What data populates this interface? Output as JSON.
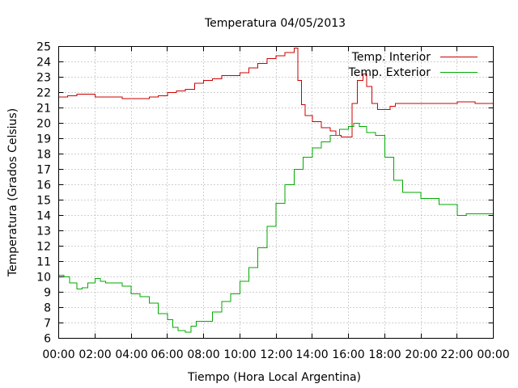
{
  "chart_data": {
    "type": "line",
    "title": "Temperatura 04/05/2013",
    "xlabel": "Tiempo (Hora Local Argentina)",
    "ylabel": "Temperatura (Grados Celsius)",
    "x_unit": "hours",
    "xlim": [
      0,
      24
    ],
    "ylim": [
      6,
      25
    ],
    "x_ticks": [
      0,
      2,
      4,
      6,
      8,
      10,
      12,
      14,
      16,
      18,
      20,
      22,
      24
    ],
    "x_tick_labels": [
      "00:00",
      "02:00",
      "04:00",
      "06:00",
      "08:00",
      "10:00",
      "12:00",
      "14:00",
      "16:00",
      "18:00",
      "20:00",
      "22:00",
      "00:00"
    ],
    "y_ticks": [
      6,
      7,
      8,
      9,
      10,
      11,
      12,
      13,
      14,
      15,
      16,
      17,
      18,
      19,
      20,
      21,
      22,
      23,
      24,
      25
    ],
    "y_tick_labels": [
      "6",
      "7",
      "8",
      "9",
      "10",
      "11",
      "12",
      "13",
      "14",
      "15",
      "16",
      "17",
      "18",
      "19",
      "20",
      "21",
      "22",
      "23",
      "24",
      "25"
    ],
    "grid": true,
    "legend_position": "top-right",
    "series": [
      {
        "name": "Temp. Interior",
        "color": "#cc0000",
        "x": [
          0,
          0.5,
          1,
          1.5,
          2,
          3,
          3.5,
          4,
          4.5,
          5,
          5.5,
          6,
          6.5,
          7,
          7.5,
          8,
          8.5,
          9,
          9.5,
          10,
          10.5,
          11,
          11.5,
          12,
          12.5,
          13,
          13.2,
          13.4,
          13.6,
          14,
          14.5,
          15,
          15.3,
          15.6,
          15.9,
          16.2,
          16.5,
          16.8,
          17,
          17.3,
          17.6,
          18,
          18.3,
          18.6,
          19,
          20,
          21,
          22,
          22.5,
          23,
          24
        ],
        "y": [
          21.7,
          21.8,
          21.9,
          21.9,
          21.7,
          21.7,
          21.6,
          21.6,
          21.6,
          21.7,
          21.8,
          22,
          22.1,
          22.2,
          22.6,
          22.8,
          22.9,
          23.1,
          23.1,
          23.3,
          23.6,
          23.9,
          24.2,
          24.4,
          24.6,
          24.9,
          22.8,
          21.2,
          20.5,
          20.1,
          19.7,
          19.5,
          19.2,
          19.1,
          19.1,
          21.3,
          22.8,
          23.2,
          22.4,
          21.3,
          20.9,
          20.9,
          21.1,
          21.3,
          21.3,
          21.3,
          21.3,
          21.4,
          21.4,
          21.3,
          21.3
        ]
      },
      {
        "name": "Temp. Exterior",
        "color": "#00aa00",
        "x": [
          0,
          0.3,
          0.6,
          1,
          1.3,
          1.6,
          2,
          2.3,
          2.6,
          3,
          3.5,
          4,
          4.5,
          5,
          5.5,
          6,
          6.3,
          6.6,
          7,
          7.3,
          7.6,
          8,
          8.5,
          9,
          9.5,
          10,
          10.5,
          11,
          11.5,
          12,
          12.5,
          13,
          13.5,
          14,
          14.5,
          15,
          15.5,
          16,
          16.3,
          16.6,
          17,
          17.5,
          18,
          18.5,
          19,
          20,
          21,
          22,
          22.5,
          23,
          24
        ],
        "y": [
          10.1,
          10,
          9.6,
          9.2,
          9.3,
          9.6,
          9.9,
          9.7,
          9.6,
          9.6,
          9.4,
          8.9,
          8.7,
          8.3,
          7.6,
          7.2,
          6.7,
          6.5,
          6.4,
          6.8,
          7.1,
          7.1,
          7.7,
          8.4,
          8.9,
          9.7,
          10.6,
          11.9,
          13.3,
          14.8,
          16,
          17,
          17.8,
          18.4,
          18.8,
          19.2,
          19.6,
          19.8,
          20,
          19.8,
          19.4,
          19.2,
          17.8,
          16.3,
          15.5,
          15.1,
          14.7,
          14,
          14.1,
          14.1,
          14.1
        ]
      }
    ]
  }
}
